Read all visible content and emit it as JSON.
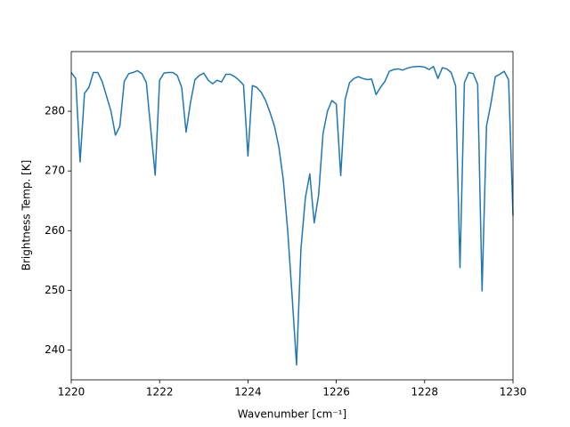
{
  "chart_data": {
    "type": "line",
    "xlabel": "Wavenumber [cm⁻¹]",
    "ylabel": "Brightness Temp. [K]",
    "xlim": [
      1220,
      1230
    ],
    "ylim": [
      235,
      290
    ],
    "xticks": [
      1220,
      1222,
      1224,
      1226,
      1228,
      1230
    ],
    "yticks": [
      240,
      250,
      260,
      270,
      280
    ],
    "grid": false,
    "x": [
      1220.0,
      1220.1,
      1220.2,
      1220.3,
      1220.4,
      1220.5,
      1220.6,
      1220.7,
      1220.8,
      1220.9,
      1221.0,
      1221.1,
      1221.2,
      1221.3,
      1221.4,
      1221.5,
      1221.6,
      1221.7,
      1221.8,
      1221.9,
      1222.0,
      1222.1,
      1222.2,
      1222.3,
      1222.4,
      1222.5,
      1222.6,
      1222.7,
      1222.8,
      1222.9,
      1223.0,
      1223.1,
      1223.2,
      1223.3,
      1223.4,
      1223.5,
      1223.6,
      1223.7,
      1223.8,
      1223.9,
      1224.0,
      1224.1,
      1224.2,
      1224.3,
      1224.4,
      1224.5,
      1224.6,
      1224.7,
      1224.8,
      1224.9,
      1225.0,
      1225.1,
      1225.2,
      1225.3,
      1225.4,
      1225.5,
      1225.6,
      1225.7,
      1225.8,
      1225.9,
      1226.0,
      1226.1,
      1226.2,
      1226.3,
      1226.4,
      1226.5,
      1226.6,
      1226.7,
      1226.8,
      1226.9,
      1227.0,
      1227.1,
      1227.2,
      1227.3,
      1227.4,
      1227.5,
      1227.6,
      1227.7,
      1227.8,
      1227.9,
      1228.0,
      1228.1,
      1228.2,
      1228.3,
      1228.4,
      1228.5,
      1228.6,
      1228.7,
      1228.8,
      1228.9,
      1229.0,
      1229.1,
      1229.2,
      1229.3,
      1229.4,
      1229.5,
      1229.6,
      1229.7,
      1229.8,
      1229.9,
      1230.0
    ],
    "series": [
      {
        "color": "#1f77b4",
        "values": [
          286.5,
          285.5,
          271.5,
          283,
          284,
          286.5,
          286.5,
          285,
          282.5,
          280,
          276,
          277.5,
          285,
          286.3,
          286.5,
          286.8,
          286.3,
          284.8,
          277,
          269.3,
          285.2,
          286.4,
          286.5,
          286.5,
          286,
          284,
          276.5,
          281.5,
          285.3,
          286,
          286.4,
          285.2,
          284.6,
          285.2,
          284.9,
          286.2,
          286.2,
          285.8,
          285.2,
          284.4,
          272.5,
          284.3,
          284,
          283.2,
          281.8,
          279.8,
          277.5,
          274,
          268.5,
          260,
          249,
          237.5,
          257,
          265.5,
          269.5,
          261.3,
          266,
          276.3,
          280,
          281.8,
          281.2,
          269.2,
          282,
          284.8,
          285.5,
          285.8,
          285.5,
          285.3,
          285.4,
          282.8,
          284,
          285,
          286.7,
          287,
          287.1,
          286.9,
          287.2,
          287.4,
          287.5,
          287.5,
          287.4,
          287,
          287.5,
          285.5,
          287.3,
          287.1,
          286.5,
          284.3,
          253.8,
          284.8,
          286.5,
          286.3,
          284.5,
          249.9,
          277.5,
          281.3,
          285.8,
          286.2,
          286.7,
          285.3,
          262.5
        ]
      }
    ]
  }
}
